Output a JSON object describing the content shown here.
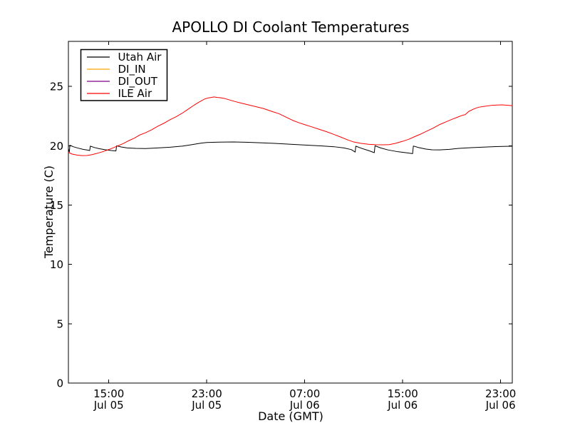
{
  "chart_data": {
    "type": "line",
    "title": "APOLLO DI Coolant Temperatures",
    "xlabel": "Date (GMT)",
    "ylabel": "Temperature (C)",
    "x_unit": "hours since Jul 05 00:00 GMT",
    "xlim": [
      11.7,
      47.95
    ],
    "ylim": [
      0,
      28.8
    ],
    "grid": false,
    "background_color": "#ffffff",
    "axis_color": "#000000",
    "legend_position": "upper left",
    "x_ticks": [
      {
        "value": 15,
        "line1": "15:00",
        "line2": "Jul 05"
      },
      {
        "value": 23,
        "line1": "23:00",
        "line2": "Jul 05"
      },
      {
        "value": 31,
        "line1": "07:00",
        "line2": "Jul 06"
      },
      {
        "value": 39,
        "line1": "15:00",
        "line2": "Jul 06"
      },
      {
        "value": 47,
        "line1": "23:00",
        "line2": "Jul 06"
      }
    ],
    "y_ticks": [
      {
        "value": 0,
        "label": "0"
      },
      {
        "value": 5,
        "label": "5"
      },
      {
        "value": 10,
        "label": "10"
      },
      {
        "value": 15,
        "label": "15"
      },
      {
        "value": 20,
        "label": "20"
      },
      {
        "value": 25,
        "label": "25"
      }
    ],
    "series": [
      {
        "name": "Utah Air",
        "color": "#000000",
        "points": [
          [
            11.7,
            19.75
          ],
          [
            11.78,
            19.48
          ],
          [
            11.82,
            20.05
          ],
          [
            12.1,
            19.92
          ],
          [
            12.5,
            19.8
          ],
          [
            12.9,
            19.7
          ],
          [
            13.3,
            19.63
          ],
          [
            13.44,
            19.6
          ],
          [
            13.49,
            19.97
          ],
          [
            13.8,
            19.86
          ],
          [
            14.2,
            19.76
          ],
          [
            14.7,
            19.67
          ],
          [
            15.2,
            19.6
          ],
          [
            15.58,
            19.56
          ],
          [
            15.64,
            20.0
          ],
          [
            16.0,
            19.9
          ],
          [
            16.5,
            19.82
          ],
          [
            17.2,
            19.78
          ],
          [
            18.0,
            19.77
          ],
          [
            19.0,
            19.82
          ],
          [
            20.0,
            19.88
          ],
          [
            21.0,
            19.97
          ],
          [
            21.8,
            20.1
          ],
          [
            22.5,
            20.22
          ],
          [
            23.0,
            20.28
          ],
          [
            24.0,
            20.31
          ],
          [
            25.2,
            20.32
          ],
          [
            26.4,
            20.29
          ],
          [
            27.5,
            20.25
          ],
          [
            28.8,
            20.19
          ],
          [
            30.0,
            20.12
          ],
          [
            31.2,
            20.05
          ],
          [
            32.3,
            19.99
          ],
          [
            33.4,
            19.92
          ],
          [
            34.2,
            19.82
          ],
          [
            34.8,
            19.68
          ],
          [
            35.12,
            19.47
          ],
          [
            35.17,
            19.97
          ],
          [
            35.6,
            19.8
          ],
          [
            36.2,
            19.6
          ],
          [
            36.68,
            19.42
          ],
          [
            36.74,
            20.0
          ],
          [
            37.2,
            19.82
          ],
          [
            37.8,
            19.65
          ],
          [
            38.6,
            19.5
          ],
          [
            39.4,
            19.4
          ],
          [
            39.81,
            19.34
          ],
          [
            39.87,
            19.98
          ],
          [
            40.3,
            19.85
          ],
          [
            40.9,
            19.72
          ],
          [
            41.4,
            19.66
          ],
          [
            42.0,
            19.65
          ],
          [
            42.8,
            19.7
          ],
          [
            43.6,
            19.78
          ],
          [
            44.6,
            19.84
          ],
          [
            45.6,
            19.89
          ],
          [
            46.6,
            19.93
          ],
          [
            47.8,
            19.96
          ],
          [
            47.95,
            19.97
          ]
        ]
      },
      {
        "name": "DI_IN",
        "color": "#ffa500",
        "points": []
      },
      {
        "name": "DI_OUT",
        "color": "#800080",
        "points": []
      },
      {
        "name": "ILE Air",
        "color": "#ff0000",
        "points": [
          [
            11.7,
            19.45
          ],
          [
            12.0,
            19.3
          ],
          [
            12.4,
            19.22
          ],
          [
            12.8,
            19.17
          ],
          [
            13.2,
            19.18
          ],
          [
            13.6,
            19.25
          ],
          [
            14.0,
            19.35
          ],
          [
            14.5,
            19.5
          ],
          [
            14.9,
            19.65
          ],
          [
            15.3,
            19.8
          ],
          [
            15.7,
            19.98
          ],
          [
            16.2,
            20.2
          ],
          [
            16.6,
            20.42
          ],
          [
            17.1,
            20.65
          ],
          [
            17.5,
            20.9
          ],
          [
            18.0,
            21.1
          ],
          [
            18.5,
            21.35
          ],
          [
            19.0,
            21.65
          ],
          [
            19.5,
            21.9
          ],
          [
            20.0,
            22.2
          ],
          [
            20.5,
            22.45
          ],
          [
            21.0,
            22.75
          ],
          [
            21.5,
            23.1
          ],
          [
            22.0,
            23.45
          ],
          [
            22.4,
            23.7
          ],
          [
            22.8,
            23.93
          ],
          [
            23.1,
            24.03
          ],
          [
            23.4,
            24.08
          ],
          [
            23.6,
            24.12
          ],
          [
            23.8,
            24.08
          ],
          [
            24.1,
            24.05
          ],
          [
            24.4,
            24.0
          ],
          [
            24.8,
            23.88
          ],
          [
            25.3,
            23.73
          ],
          [
            25.8,
            23.6
          ],
          [
            26.4,
            23.45
          ],
          [
            27.0,
            23.3
          ],
          [
            27.6,
            23.15
          ],
          [
            28.3,
            22.9
          ],
          [
            28.9,
            22.7
          ],
          [
            29.5,
            22.4
          ],
          [
            30.0,
            22.15
          ],
          [
            30.5,
            21.95
          ],
          [
            31.0,
            21.78
          ],
          [
            31.5,
            21.62
          ],
          [
            32.2,
            21.38
          ],
          [
            32.8,
            21.18
          ],
          [
            33.4,
            20.95
          ],
          [
            33.9,
            20.75
          ],
          [
            34.5,
            20.5
          ],
          [
            35.0,
            20.32
          ],
          [
            35.6,
            20.2
          ],
          [
            36.2,
            20.13
          ],
          [
            36.8,
            20.09
          ],
          [
            37.4,
            20.08
          ],
          [
            37.9,
            20.1
          ],
          [
            38.4,
            20.2
          ],
          [
            39.0,
            20.38
          ],
          [
            39.5,
            20.55
          ],
          [
            40.0,
            20.78
          ],
          [
            40.5,
            21.0
          ],
          [
            41.0,
            21.25
          ],
          [
            41.5,
            21.5
          ],
          [
            42.0,
            21.78
          ],
          [
            42.5,
            22.0
          ],
          [
            43.0,
            22.22
          ],
          [
            43.5,
            22.42
          ],
          [
            43.9,
            22.58
          ],
          [
            44.1,
            22.62
          ],
          [
            44.4,
            22.9
          ],
          [
            44.8,
            23.1
          ],
          [
            45.2,
            23.25
          ],
          [
            45.7,
            23.33
          ],
          [
            46.2,
            23.4
          ],
          [
            46.7,
            23.43
          ],
          [
            47.1,
            23.45
          ],
          [
            47.5,
            23.42
          ],
          [
            47.95,
            23.38
          ]
        ]
      }
    ]
  }
}
